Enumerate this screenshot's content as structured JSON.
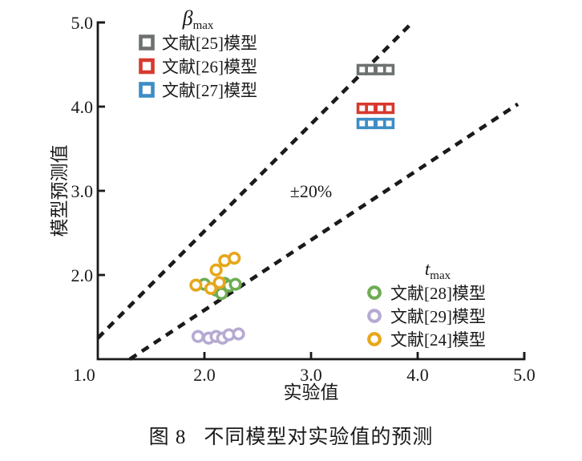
{
  "figure": {
    "caption_prefix": "图 8",
    "caption_text": "不同模型对实验值的预测"
  },
  "chart_data": {
    "type": "scatter",
    "title": "",
    "xlabel": "实验值",
    "ylabel": "模型预测值",
    "xlim": [
      1.0,
      5.0
    ],
    "ylim": [
      1.0,
      5.0
    ],
    "xticks": [
      2.0,
      3.0,
      4.0,
      5.0
    ],
    "yticks": [
      2.0,
      3.0,
      4.0,
      5.0
    ],
    "origin_tick_label": "1.0",
    "grid": false,
    "axis_color": "#1a1a1a",
    "annotation": {
      "text": "±20%",
      "x": 3.0,
      "y": 3.0
    },
    "reference_lines": [
      {
        "name": "upper-20pct-bound",
        "style": "dashed",
        "color": "#1a1a1a",
        "points": [
          [
            1.0,
            1.25
          ],
          [
            3.95,
            5.0
          ]
        ]
      },
      {
        "name": "lower-20pct-bound",
        "style": "dashed",
        "color": "#1a1a1a",
        "points": [
          [
            1.3,
            1.0
          ],
          [
            4.94,
            4.03
          ]
        ]
      }
    ],
    "legends": [
      {
        "id": "beta",
        "title_main": "β",
        "title_sub": "max",
        "position": "top-left",
        "items": [
          {
            "label": "文献[25]模型",
            "marker": "square",
            "color": "#6d7271"
          },
          {
            "label": "文献[26]模型",
            "marker": "square",
            "color": "#d8392e"
          },
          {
            "label": "文献[27]模型",
            "marker": "square",
            "color": "#3d8dc6"
          }
        ]
      },
      {
        "id": "t",
        "title_main": "t",
        "title_sub": "max",
        "position": "bottom-right",
        "items": [
          {
            "label": "文献[28]模型",
            "marker": "circle",
            "color": "#6ead52"
          },
          {
            "label": "文献[29]模型",
            "marker": "circle",
            "color": "#b6aad2"
          },
          {
            "label": "文献[24]模型",
            "marker": "circle",
            "color": "#e7a71b"
          }
        ]
      }
    ],
    "series": [
      {
        "name": "文献[25]模型",
        "group": "βmax",
        "marker": "square",
        "color": "#6d7271",
        "points": [
          [
            3.48,
            4.44
          ],
          [
            3.56,
            4.44
          ],
          [
            3.65,
            4.44
          ],
          [
            3.73,
            4.44
          ]
        ]
      },
      {
        "name": "文献[26]模型",
        "group": "βmax",
        "marker": "square",
        "color": "#d8392e",
        "points": [
          [
            3.48,
            3.98
          ],
          [
            3.56,
            3.98
          ],
          [
            3.65,
            3.98
          ],
          [
            3.73,
            3.98
          ]
        ]
      },
      {
        "name": "文献[27]模型",
        "group": "βmax",
        "marker": "square",
        "color": "#3d8dc6",
        "points": [
          [
            3.48,
            3.8
          ],
          [
            3.56,
            3.8
          ],
          [
            3.65,
            3.8
          ],
          [
            3.73,
            3.8
          ]
        ]
      },
      {
        "name": "文献[28]模型",
        "group": "tmax",
        "marker": "circle",
        "color": "#6ead52",
        "points": [
          [
            2.0,
            1.89
          ],
          [
            2.11,
            1.82
          ],
          [
            2.19,
            1.9
          ],
          [
            2.23,
            1.87
          ],
          [
            2.29,
            1.89
          ],
          [
            2.16,
            1.78
          ]
        ]
      },
      {
        "name": "文献[29]模型",
        "group": "tmax",
        "marker": "circle",
        "color": "#b6aad2",
        "points": [
          [
            1.94,
            1.27
          ],
          [
            2.04,
            1.25
          ],
          [
            2.11,
            1.27
          ],
          [
            2.17,
            1.25
          ],
          [
            2.23,
            1.29
          ],
          [
            2.32,
            1.3
          ]
        ]
      },
      {
        "name": "文献[24]模型",
        "group": "tmax",
        "marker": "circle",
        "color": "#e7a71b",
        "points": [
          [
            1.92,
            1.88
          ],
          [
            2.06,
            1.84
          ],
          [
            2.14,
            1.91
          ],
          [
            2.11,
            2.06
          ],
          [
            2.19,
            2.17
          ],
          [
            2.28,
            2.2
          ]
        ]
      }
    ]
  }
}
